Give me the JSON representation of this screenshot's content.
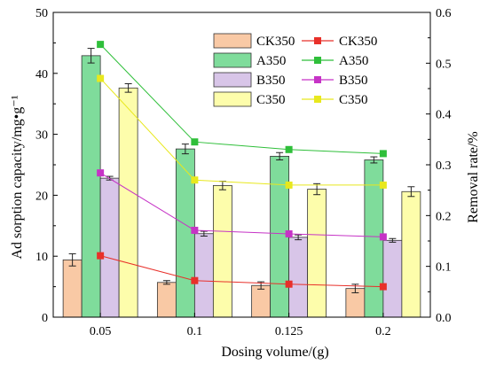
{
  "chart_data": {
    "type": "bar+line",
    "categories": [
      "0.05",
      "0.1",
      "0.125",
      "0.2"
    ],
    "xlabel": "Dosing volume/(g)",
    "ylabel_left": "Ad sorption capacity/mg•g⁻¹",
    "ylabel_right": "Removal rate/%",
    "ylim_left": [
      0,
      50
    ],
    "yticks_left": [
      "0",
      "10",
      "20",
      "30",
      "40",
      "50"
    ],
    "ylim_right": [
      0.0,
      0.6
    ],
    "yticks_right": [
      "0.0",
      "0.1",
      "0.2",
      "0.3",
      "0.4",
      "0.5",
      "0.6"
    ],
    "bar_series": [
      {
        "name": "CK350",
        "values": [
          9.4,
          5.7,
          5.2,
          4.7
        ],
        "errors": [
          1.0,
          0.3,
          0.6,
          0.7
        ],
        "color": "#f9c9a5"
      },
      {
        "name": "A350",
        "values": [
          42.9,
          27.6,
          26.4,
          25.8
        ],
        "errors": [
          1.2,
          0.8,
          0.6,
          0.5
        ],
        "color": "#7fdc9b"
      },
      {
        "name": "B350",
        "values": [
          22.8,
          13.7,
          13.1,
          12.6
        ],
        "errors": [
          0.3,
          0.4,
          0.4,
          0.3
        ],
        "color": "#d8c5e8"
      },
      {
        "name": "C350",
        "values": [
          37.6,
          21.6,
          21.0,
          20.6
        ],
        "errors": [
          0.7,
          0.7,
          0.9,
          0.8
        ],
        "color": "#fdfdab"
      }
    ],
    "line_series": [
      {
        "name": "CK350",
        "values": [
          0.121,
          0.072,
          0.065,
          0.06
        ],
        "color": "#e8302a"
      },
      {
        "name": "A350",
        "values": [
          0.537,
          0.345,
          0.33,
          0.322
        ],
        "color": "#2fbf3a"
      },
      {
        "name": "B350",
        "values": [
          0.284,
          0.171,
          0.164,
          0.158
        ],
        "color": "#c633c6"
      },
      {
        "name": "C350",
        "values": [
          0.47,
          0.27,
          0.26,
          0.26
        ],
        "color": "#e8e81e"
      }
    ]
  }
}
